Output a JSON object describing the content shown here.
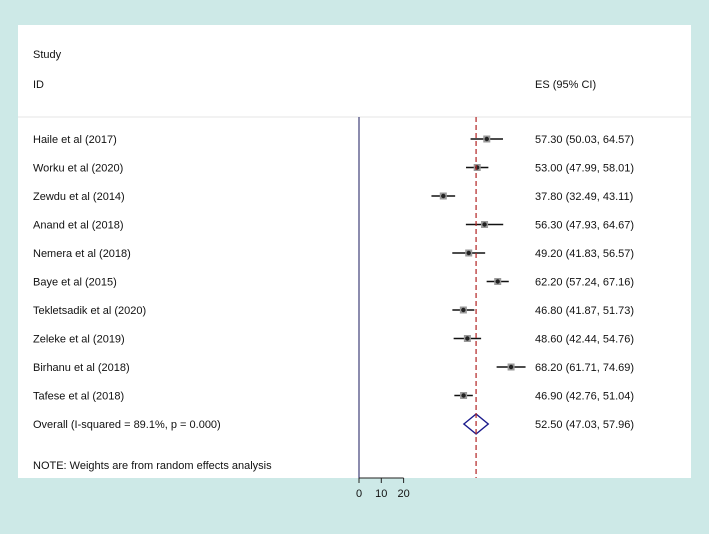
{
  "chart_data": {
    "type": "forest",
    "header": {
      "col1_line1": "Study",
      "col1_line2": "ID",
      "col2": "ES (95% CI)"
    },
    "studies": [
      {
        "label": "Haile et al  (2017)",
        "es": 57.3,
        "lo": 50.03,
        "hi": 64.57,
        "ci_text": "57.30 (50.03, 64.57)"
      },
      {
        "label": "Worku  et al (2020)",
        "es": 53.0,
        "lo": 47.99,
        "hi": 58.01,
        "ci_text": "53.00 (47.99, 58.01)"
      },
      {
        "label": "Zewdu  et al (2014)",
        "es": 37.8,
        "lo": 32.49,
        "hi": 43.11,
        "ci_text": "37.80 (32.49, 43.11)"
      },
      {
        "label": "Anand et al (2018)",
        "es": 56.3,
        "lo": 47.93,
        "hi": 64.67,
        "ci_text": "56.30 (47.93, 64.67)"
      },
      {
        "label": "Nemera  et al (2018)",
        "es": 49.2,
        "lo": 41.83,
        "hi": 56.57,
        "ci_text": "49.20 (41.83, 56.57)"
      },
      {
        "label": "Baye et al (2015)",
        "es": 62.2,
        "lo": 57.24,
        "hi": 67.16,
        "ci_text": "62.20 (57.24, 67.16)"
      },
      {
        "label": "Tekletsadik et al (2020)",
        "es": 46.8,
        "lo": 41.87,
        "hi": 51.73,
        "ci_text": "46.80 (41.87, 51.73)"
      },
      {
        "label": "Zeleke et al (2019)",
        "es": 48.6,
        "lo": 42.44,
        "hi": 54.76,
        "ci_text": "48.60 (42.44, 54.76)"
      },
      {
        "label": "Birhanu et al (2018)",
        "es": 68.2,
        "lo": 61.71,
        "hi": 74.69,
        "ci_text": "68.20 (61.71, 74.69)"
      },
      {
        "label": "Tafese et al (2018)",
        "es": 46.9,
        "lo": 42.76,
        "hi": 51.04,
        "ci_text": "46.90 (42.76, 51.04)"
      }
    ],
    "overall": {
      "label": "Overall  (I-squared = 89.1%, p = 0.000)",
      "es": 52.5,
      "lo": 47.03,
      "hi": 57.96,
      "ci_text": "52.50 (47.03, 57.96)"
    },
    "note": "NOTE: Weights are from random effects analysis",
    "x_ticks": [
      0,
      10,
      20
    ],
    "reference_line": 0,
    "overall_line": 52.5,
    "colors": {
      "background": "#cde9e7",
      "panel": "#ffffff",
      "dashed_line": "#b22222",
      "diamond": "#1a1a8c",
      "marker": "#222222"
    }
  }
}
